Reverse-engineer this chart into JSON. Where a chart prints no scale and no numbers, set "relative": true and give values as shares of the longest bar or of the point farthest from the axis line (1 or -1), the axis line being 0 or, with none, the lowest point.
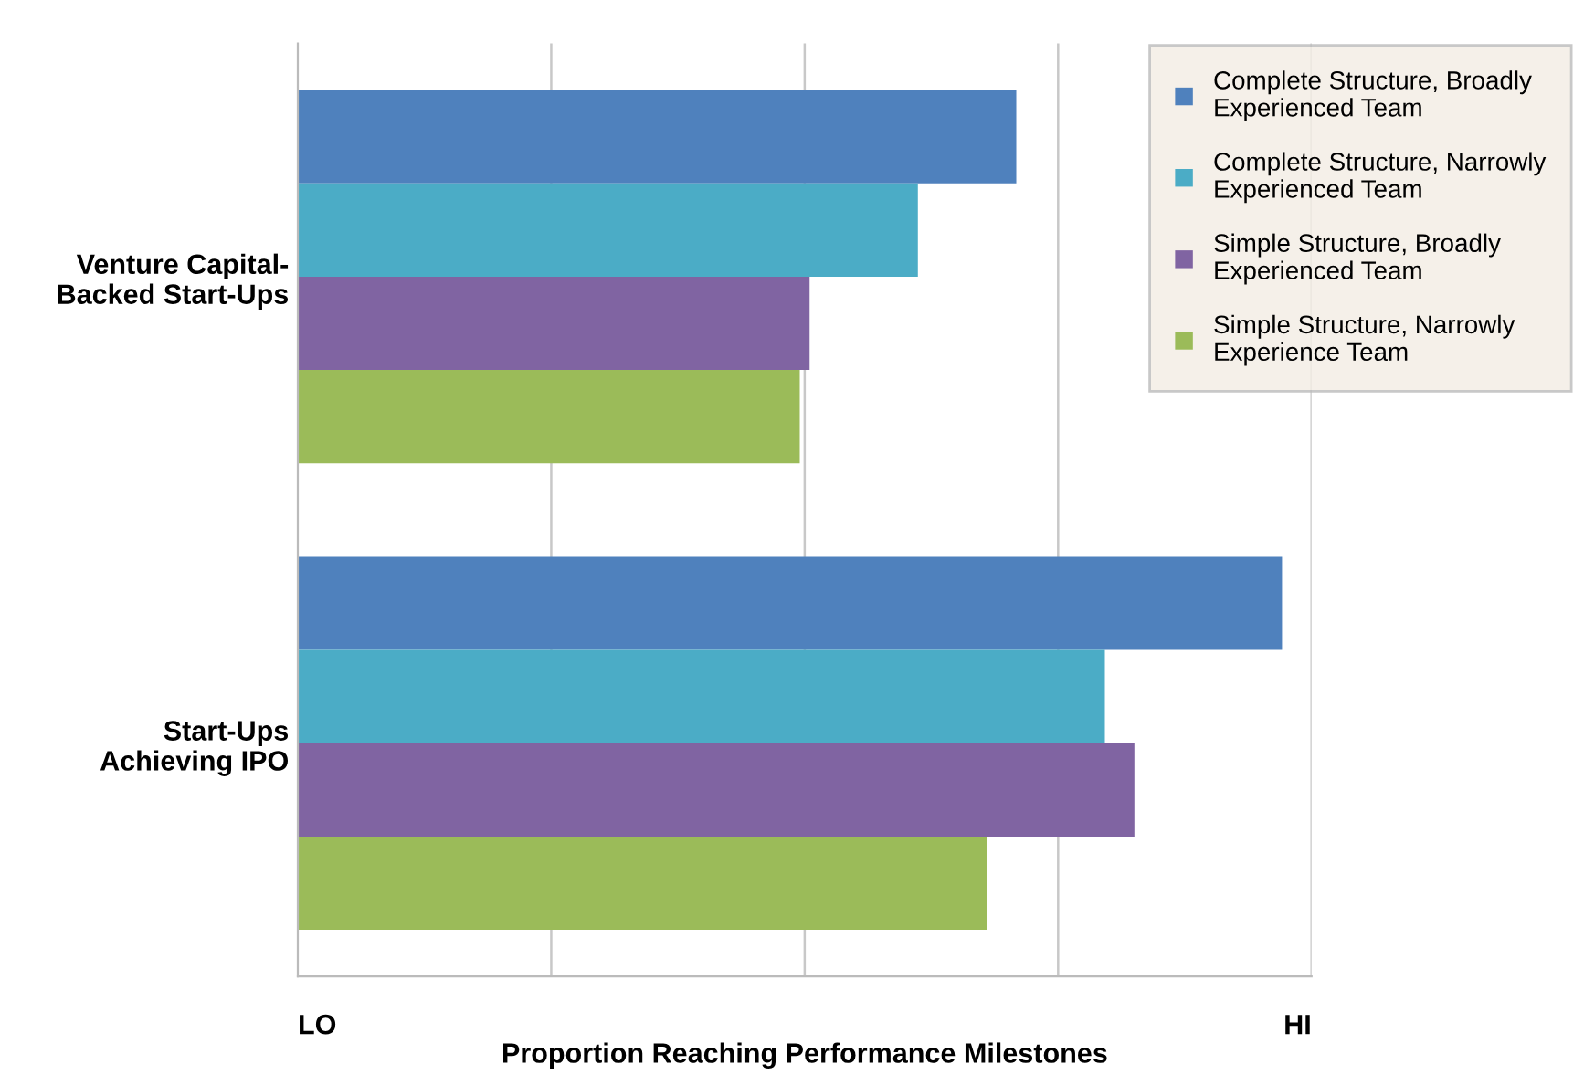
{
  "chart_data": {
    "type": "bar",
    "orientation": "horizontal",
    "relative": true,
    "xlabel": "Proportion Reaching Performance Milestones",
    "categories": [
      "Venture Capital-\nBacked Start-Ups",
      "Start-Ups\nAchieving IPO"
    ],
    "series": [
      {
        "name": "Complete Structure, Broadly\nExperienced Team",
        "color": "#4f81bd",
        "values": [
          0.73,
          1
        ]
      },
      {
        "name": "Complete Structure, Narrowly\nExperienced Team",
        "color": "#4bacc6",
        "values": [
          0.63,
          0.82
        ]
      },
      {
        "name": "Simple Structure, Broadly\nExperienced Team",
        "color": "#8064a2",
        "values": [
          0.52,
          0.85
        ]
      },
      {
        "name": "Simple Structure, Narrowly\nExperience Team",
        "color": "#9bbb59",
        "values": [
          0.51,
          0.7
        ]
      }
    ],
    "annotations": [
      "LO",
      "HI"
    ],
    "grid": "x",
    "legend": "top right"
  }
}
